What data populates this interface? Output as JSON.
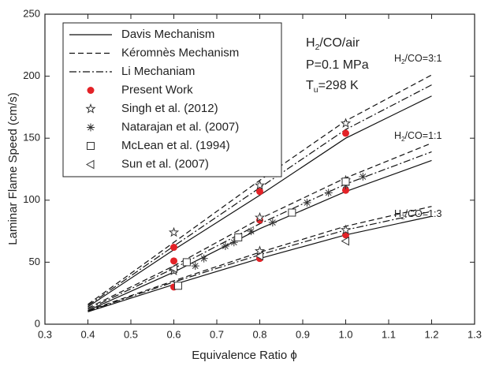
{
  "chart_data": {
    "type": "line",
    "xlabel": "Equivalence Ratio ϕ",
    "ylabel": "Laminar Flame Speed (cm/s)",
    "xlim": [
      0.3,
      1.3
    ],
    "xticks": [
      0.3,
      0.4,
      0.5,
      0.6,
      0.7,
      0.8,
      0.9,
      {
        "value": 1,
        "label": "1.0"
      },
      1.1,
      1.2,
      1.3
    ],
    "ylim": [
      0,
      250
    ],
    "yticks": [
      0,
      50,
      100,
      150,
      200,
      250
    ],
    "legend": "top-left",
    "series": [
      {
        "name": "Davis Mechanism",
        "style": "solid",
        "color": "#111111",
        "x": [
          0.4,
          0.6,
          0.8,
          1.0,
          1.2
        ],
        "curves": [
          [
            14,
            60,
            104,
            150,
            184
          ],
          [
            11,
            42,
            77,
            107,
            132
          ],
          [
            10,
            32,
            53,
            72,
            87
          ]
        ]
      },
      {
        "name": "Kéromnès Mechanism",
        "style": "dashed",
        "color": "#111111",
        "x": [
          0.4,
          0.6,
          0.8,
          1.0,
          1.2
        ],
        "curves": [
          [
            16,
            66,
            116,
            164,
            201
          ],
          [
            13,
            47,
            85,
            118,
            146
          ],
          [
            11,
            35,
            58,
            79,
            95
          ]
        ]
      },
      {
        "name": "Li Mechaniam",
        "style": "dashdot",
        "color": "#111111",
        "x": [
          0.4,
          0.6,
          0.8,
          1.0,
          1.2
        ],
        "curves": [
          [
            15,
            63,
            110,
            157,
            193
          ],
          [
            12,
            45,
            81,
            113,
            139
          ],
          [
            10.5,
            34,
            56,
            76,
            91
          ]
        ]
      },
      {
        "name": "Present Work",
        "marker": "circle",
        "color": "#e32227",
        "x": [
          0.6,
          0.6,
          0.6,
          0.8,
          0.8,
          0.8,
          1.0,
          1.0,
          1.0
        ],
        "values": [
          62,
          51,
          30,
          107,
          84,
          53,
          154,
          108,
          72
        ]
      },
      {
        "name": "Singh et al. (2012)",
        "marker": "star",
        "color": "#333333",
        "x": [
          0.6,
          0.8,
          1.0,
          0.6,
          0.8,
          1.0,
          0.8,
          1.0
        ],
        "values": [
          74,
          112,
          162,
          43,
          86,
          116,
          59,
          76
        ]
      },
      {
        "name": "Natarajan et al. (2007)",
        "marker": "asterisk",
        "color": "#333333",
        "x": [
          0.6,
          0.65,
          0.67,
          0.72,
          0.74,
          0.78,
          0.83,
          0.91,
          0.96,
          1.0,
          1.04
        ],
        "values": [
          44,
          47,
          53,
          63,
          66,
          75,
          82,
          98,
          106,
          112,
          119
        ]
      },
      {
        "name": "McLean et al. (1994)",
        "marker": "square",
        "color": "#333333",
        "x": [
          0.61,
          0.63,
          0.75,
          0.875,
          1.0
        ],
        "values": [
          31,
          50,
          70,
          90,
          115
        ]
      },
      {
        "name": "Sun et al. (2007)",
        "marker": "triangle-left",
        "color": "#333333",
        "x": [
          0.6,
          0.8,
          1.0
        ],
        "values": [
          45,
          55,
          67
        ]
      }
    ],
    "annotations": [
      {
        "parts": [
          "H",
          "2",
          "/CO/air"
        ]
      },
      {
        "parts": [
          "P=0.1 MPa"
        ]
      },
      {
        "parts": [
          "T",
          "u",
          "=298 K"
        ]
      },
      {
        "parts": [
          "H",
          "2",
          "/CO=3:1"
        ]
      },
      {
        "parts": [
          "H",
          "2",
          "/CO=1:1"
        ]
      },
      {
        "parts": [
          "H",
          "2",
          "/CO=1:3"
        ]
      }
    ]
  }
}
